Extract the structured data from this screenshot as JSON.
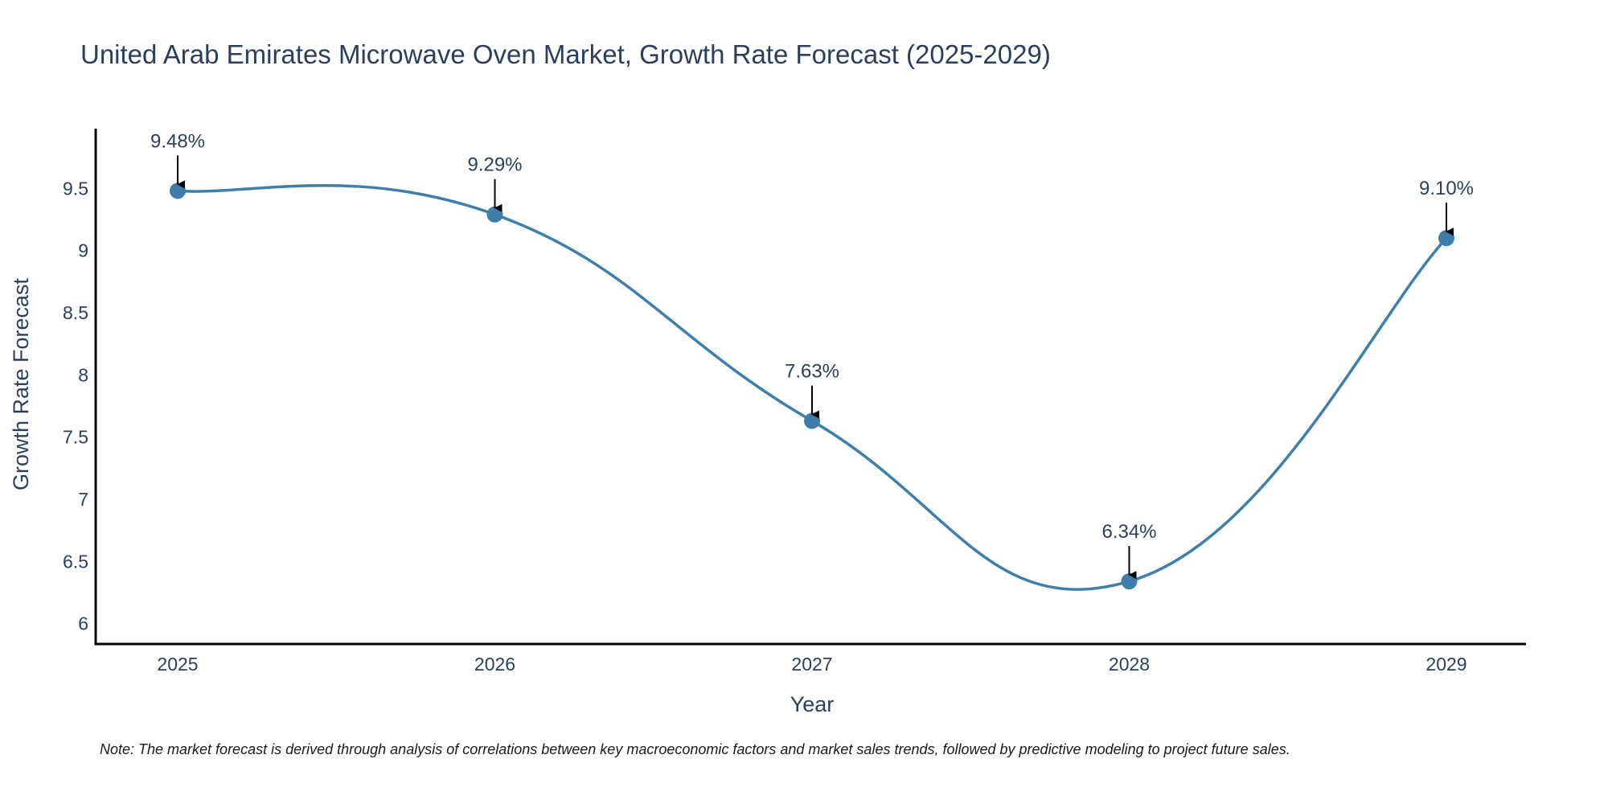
{
  "chart_data": {
    "type": "line",
    "title": "United Arab Emirates Microwave Oven Market, Growth Rate Forecast (2025-2029)",
    "xlabel": "Year",
    "ylabel": "Growth Rate Forecast",
    "categories": [
      "2025",
      "2026",
      "2027",
      "2028",
      "2029"
    ],
    "values": [
      9.48,
      9.29,
      7.63,
      6.34,
      9.1
    ],
    "data_labels": [
      "9.48%",
      "9.29%",
      "7.63%",
      "6.34%",
      "9.10%"
    ],
    "yticks": [
      6,
      6.5,
      7,
      7.5,
      8,
      8.5,
      9,
      9.5
    ],
    "ytick_labels": [
      "6",
      "6.5",
      "7",
      "7.5",
      "8",
      "8.5",
      "9",
      "9.5"
    ],
    "ylim": [
      5.83,
      9.98
    ],
    "grid": false,
    "line_shape": "spline",
    "colors": {
      "line": "#3d7eaa",
      "marker": "#3d7eaa",
      "arrow": "#000000",
      "axis": "#000000",
      "text": "#2a3f5f"
    }
  },
  "note": "Note: The market forecast is derived through analysis of correlations between key macroeconomic factors and market sales trends, followed by predictive modeling to project future sales."
}
